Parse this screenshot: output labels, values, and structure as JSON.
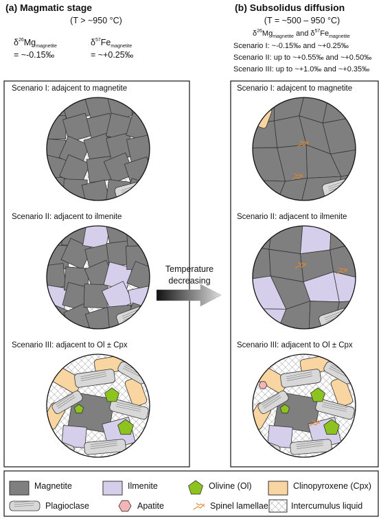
{
  "panel_a": {
    "title": "(a) Magmatic stage",
    "temperature": "(T > ~950 °C)",
    "isotopes": [
      {
        "delta": "δ",
        "mass": "26",
        "element": "Mg",
        "subscript": "magnetite",
        "value": "= ~-0.15‰"
      },
      {
        "delta": "δ",
        "mass": "57",
        "element": "Fe",
        "subscript": "magnetite",
        "value": "= ~+0.25‰"
      }
    ],
    "scenarios": [
      "Scenario I: adajcent to magnetite",
      "Scenario II: adjacent to ilmenite",
      "Scenario III: adjacent to Ol ± Cpx"
    ]
  },
  "panel_b": {
    "title": "(b) Subsolidus diffusion",
    "temperature": "(T = ~500 – 950 °C)",
    "isotopes_line": {
      "first": {
        "delta": "δ",
        "mass": "26",
        "element": "Mg",
        "subscript": "magnetite"
      },
      "joiner": "and",
      "second": {
        "delta": "δ",
        "mass": "57",
        "element": "Fe",
        "subscript": "magnetite"
      }
    },
    "scenario_values": [
      "Scenario I: ~-0.15‰ and ~+0.25‰",
      "Scenario II: up to ~+0.55‰ and ~+0.50‰",
      "Scenario III: up to ~+1.0‰ and ~+0.35‰"
    ],
    "scenarios": [
      "Scenario I: adajcent to magnetite",
      "Scenario II: adjacent to ilmenite",
      "Scenario III: adjacent to Ol ± Cpx"
    ]
  },
  "arrow": {
    "label": [
      "Temperature",
      "decreasing"
    ]
  },
  "legend": [
    "Magnetite",
    "Ilmenite",
    "Olivine (Ol)",
    "Clinopyroxene (Cpx)",
    "Plagioclase",
    "Apatite",
    "Spinel lamellae",
    "Intercumulus liquid"
  ]
}
